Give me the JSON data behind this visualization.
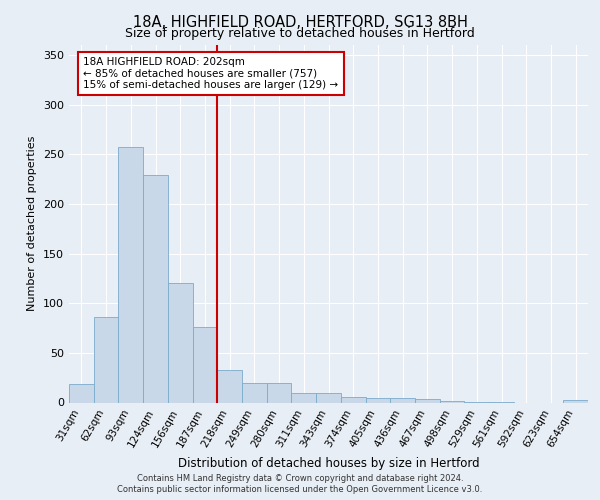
{
  "title_line1": "18A, HIGHFIELD ROAD, HERTFORD, SG13 8BH",
  "title_line2": "Size of property relative to detached houses in Hertford",
  "xlabel": "Distribution of detached houses by size in Hertford",
  "ylabel": "Number of detached properties",
  "categories": [
    "31sqm",
    "62sqm",
    "93sqm",
    "124sqm",
    "156sqm",
    "187sqm",
    "218sqm",
    "249sqm",
    "280sqm",
    "311sqm",
    "343sqm",
    "374sqm",
    "405sqm",
    "436sqm",
    "467sqm",
    "498sqm",
    "529sqm",
    "561sqm",
    "592sqm",
    "623sqm",
    "654sqm"
  ],
  "values": [
    19,
    86,
    257,
    229,
    120,
    76,
    33,
    20,
    20,
    10,
    10,
    6,
    5,
    5,
    4,
    2,
    1,
    1,
    0,
    0,
    3
  ],
  "bar_color": "#c8d8e8",
  "bar_edge_color": "#7aabcc",
  "marker_line_color": "#cc0000",
  "annotation_box_color": "#ffffff",
  "annotation_box_edge": "#cc0000",
  "marker_label_line1": "18A HIGHFIELD ROAD: 202sqm",
  "marker_label_line2": "← 85% of detached houses are smaller (757)",
  "marker_label_line3": "15% of semi-detached houses are larger (129) →",
  "ylim": [
    0,
    360
  ],
  "yticks": [
    0,
    50,
    100,
    150,
    200,
    250,
    300,
    350
  ],
  "background_color": "#e8eef5",
  "plot_background": "#e8eef5",
  "footer_line1": "Contains HM Land Registry data © Crown copyright and database right 2024.",
  "footer_line2": "Contains public sector information licensed under the Open Government Licence v3.0."
}
